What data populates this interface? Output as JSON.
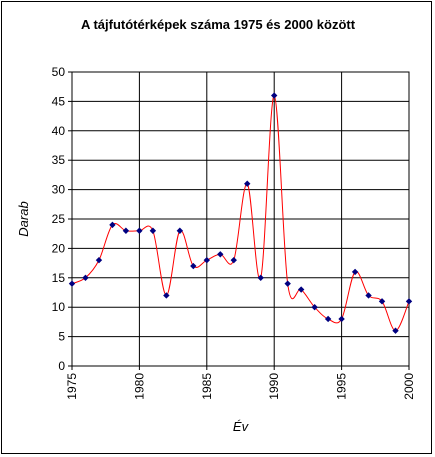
{
  "chart_data": {
    "type": "line",
    "title": "A tájfutótérképek száma 1975 és 2000 között",
    "xlabel": "Év",
    "ylabel": "Darab",
    "xlim": [
      1975,
      2000
    ],
    "ylim": [
      0,
      50
    ],
    "x_ticks": [
      1975,
      1980,
      1985,
      1990,
      1995,
      2000
    ],
    "y_ticks": [
      0,
      5,
      10,
      15,
      20,
      25,
      30,
      35,
      40,
      45,
      50
    ],
    "grid": true,
    "series": [
      {
        "color": "#ff0000",
        "marker_color": "#000080",
        "x": [
          1975,
          1976,
          1977,
          1978,
          1979,
          1980,
          1981,
          1982,
          1983,
          1984,
          1985,
          1986,
          1987,
          1988,
          1989,
          1990,
          1991,
          1992,
          1993,
          1994,
          1995,
          1996,
          1997,
          1998,
          1999,
          2000
        ],
        "values": [
          14,
          15,
          18,
          24,
          23,
          23,
          23,
          12,
          23,
          17,
          18,
          19,
          18,
          31,
          15,
          46,
          14,
          13,
          10,
          8,
          8,
          16,
          12,
          11,
          6,
          11
        ]
      }
    ]
  }
}
